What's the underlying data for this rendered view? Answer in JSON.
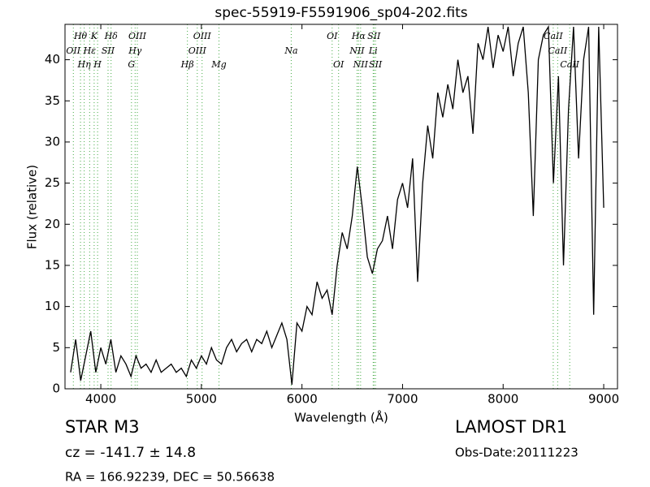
{
  "chart_data": {
    "type": "line",
    "title": "spec-55919-F5591906_sp04-202.fits",
    "x_label": "Wavelength (Å)",
    "y_label": "Flux (relative)",
    "xlim": [
      3644,
      9137
    ],
    "ylim": [
      0,
      44.3
    ],
    "xticks": [
      4000,
      5000,
      6000,
      7000,
      8000,
      9000
    ],
    "yticks": [
      0,
      5,
      10,
      15,
      20,
      25,
      30,
      35,
      40
    ],
    "series": [
      {
        "name": "flux",
        "color": "#000000",
        "x": [
          3700,
          3750,
          3800,
          3850,
          3900,
          3950,
          4000,
          4050,
          4100,
          4150,
          4200,
          4250,
          4300,
          4350,
          4400,
          4450,
          4500,
          4550,
          4600,
          4650,
          4700,
          4750,
          4800,
          4850,
          4900,
          4950,
          5000,
          5050,
          5100,
          5150,
          5200,
          5250,
          5300,
          5350,
          5400,
          5450,
          5500,
          5550,
          5600,
          5650,
          5700,
          5750,
          5800,
          5850,
          5900,
          5950,
          6000,
          6050,
          6100,
          6150,
          6200,
          6250,
          6300,
          6350,
          6400,
          6450,
          6500,
          6550,
          6600,
          6650,
          6700,
          6750,
          6800,
          6850,
          6900,
          6950,
          7000,
          7050,
          7100,
          7150,
          7200,
          7250,
          7300,
          7350,
          7400,
          7450,
          7500,
          7550,
          7600,
          7650,
          7700,
          7750,
          7800,
          7850,
          7900,
          7950,
          8000,
          8050,
          8100,
          8150,
          8200,
          8250,
          8300,
          8350,
          8400,
          8450,
          8500,
          8550,
          8600,
          8650,
          8700,
          8750,
          8800,
          8850,
          8900,
          8950,
          9000
        ],
        "values": [
          2,
          6,
          1,
          4,
          7,
          2,
          5,
          3,
          6,
          2,
          4,
          3,
          1.5,
          4,
          2.5,
          3,
          2,
          3.5,
          2,
          2.5,
          3,
          2,
          2.5,
          1.5,
          3.5,
          2.5,
          4,
          3,
          5,
          3.5,
          3,
          5,
          6,
          4.5,
          5.5,
          6,
          4.5,
          6,
          5.5,
          7,
          5,
          6.5,
          8,
          6,
          0.5,
          8,
          7,
          10,
          9,
          13,
          11,
          12,
          9,
          15,
          19,
          17,
          21,
          27,
          22,
          16,
          14,
          17,
          18,
          21,
          17,
          23,
          25,
          22,
          28,
          13,
          25,
          32,
          28,
          36,
          33,
          37,
          34,
          40,
          36,
          38,
          31,
          42,
          40,
          44,
          39,
          43,
          41,
          44,
          38,
          42,
          44,
          36,
          21,
          40,
          43,
          44,
          25,
          38,
          15,
          34,
          44,
          28,
          40,
          44,
          9,
          44,
          22
        ]
      }
    ],
    "lines": [
      {
        "wavelength": 3727,
        "label": "OII",
        "row": 1
      },
      {
        "wavelength": 3798,
        "label": "Hθ",
        "row": 0
      },
      {
        "wavelength": 3835,
        "label": "Hη",
        "row": 2
      },
      {
        "wavelength": 3934,
        "label": "K",
        "row": 0
      },
      {
        "wavelength": 3889,
        "label": "Hε",
        "row": 1
      },
      {
        "wavelength": 3968,
        "label": "H",
        "row": 2
      },
      {
        "wavelength": 4102,
        "label": "Hδ",
        "row": 0
      },
      {
        "wavelength": 4072,
        "label": "SII",
        "row": 1
      },
      {
        "wavelength": 4363,
        "label": "OIII",
        "row": 0
      },
      {
        "wavelength": 4341,
        "label": "Hγ",
        "row": 1
      },
      {
        "wavelength": 4305,
        "label": "G",
        "row": 2
      },
      {
        "wavelength": 5007,
        "label": "OIII",
        "row": 0
      },
      {
        "wavelength": 4959,
        "label": "OIII",
        "row": 1
      },
      {
        "wavelength": 4861,
        "label": "Hβ",
        "row": 2
      },
      {
        "wavelength": 5175,
        "label": "Mg",
        "row": 2
      },
      {
        "wavelength": 5893,
        "label": "Na",
        "row": 1
      },
      {
        "wavelength": 6300,
        "label": "OI",
        "row": 0
      },
      {
        "wavelength": 6364,
        "label": "OI",
        "row": 2
      },
      {
        "wavelength": 6563,
        "label": "Hα",
        "row": 0
      },
      {
        "wavelength": 6548,
        "label": "NII",
        "row": 1
      },
      {
        "wavelength": 6583,
        "label": "NII",
        "row": 2
      },
      {
        "wavelength": 6716,
        "label": "SII",
        "row": 0
      },
      {
        "wavelength": 6708,
        "label": "Li",
        "row": 1
      },
      {
        "wavelength": 6731,
        "label": "SII",
        "row": 2
      },
      {
        "wavelength": 8498,
        "label": "CaII",
        "row": 0
      },
      {
        "wavelength": 8542,
        "label": "CaII",
        "row": 1
      },
      {
        "wavelength": 8662,
        "label": "CaII",
        "row": 2
      }
    ],
    "info": {
      "class": "STAR   M3",
      "cz": "cz = -141.7 ± 14.8",
      "coords": "RA = 166.92239, DEC = 50.56638",
      "survey": "LAMOST DR1",
      "date": "Obs-Date:20111223"
    }
  }
}
